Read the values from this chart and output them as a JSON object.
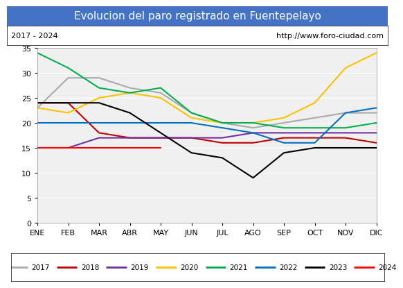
{
  "title": "Evolucion del paro registrado en Fuentepelayo",
  "subtitle_left": "2017 - 2024",
  "subtitle_right": "http://www.foro-ciudad.com",
  "title_bg_color": "#4472c4",
  "title_text_color": "white",
  "months": [
    "ENE",
    "FEB",
    "MAR",
    "ABR",
    "MAY",
    "JUN",
    "JUL",
    "AGO",
    "SEP",
    "OCT",
    "NOV",
    "DIC"
  ],
  "ylim": [
    0,
    35
  ],
  "yticks": [
    0,
    5,
    10,
    15,
    20,
    25,
    30,
    35
  ],
  "series": {
    "2017": {
      "color": "#aaaaaa",
      "data": [
        23,
        29,
        29,
        27,
        26,
        22,
        20,
        19,
        20,
        21,
        22,
        22
      ]
    },
    "2018": {
      "color": "#c00000",
      "data": [
        24,
        24,
        18,
        17,
        17,
        17,
        16,
        16,
        17,
        17,
        17,
        16
      ]
    },
    "2019": {
      "color": "#7030a0",
      "data": [
        15,
        15,
        17,
        17,
        17,
        17,
        17,
        18,
        18,
        18,
        18,
        18
      ]
    },
    "2020": {
      "color": "#ffc000",
      "data": [
        23,
        22,
        25,
        26,
        25,
        21,
        20,
        20,
        21,
        24,
        31,
        34
      ]
    },
    "2021": {
      "color": "#00b050",
      "data": [
        34,
        31,
        27,
        26,
        27,
        22,
        20,
        20,
        19,
        19,
        19,
        20
      ]
    },
    "2022": {
      "color": "#0070c0",
      "data": [
        20,
        20,
        20,
        20,
        20,
        20,
        19,
        18,
        16,
        16,
        22,
        23
      ]
    },
    "2023": {
      "color": "#000000",
      "data": [
        24,
        24,
        24,
        22,
        18,
        14,
        13,
        9,
        14,
        15,
        15,
        15
      ]
    },
    "2024": {
      "color": "#ff0000",
      "data": [
        15,
        15,
        15,
        15,
        15,
        null,
        null,
        null,
        null,
        null,
        null,
        null
      ]
    }
  },
  "legend_years": [
    "2017",
    "2018",
    "2019",
    "2020",
    "2021",
    "2022",
    "2023",
    "2024"
  ]
}
